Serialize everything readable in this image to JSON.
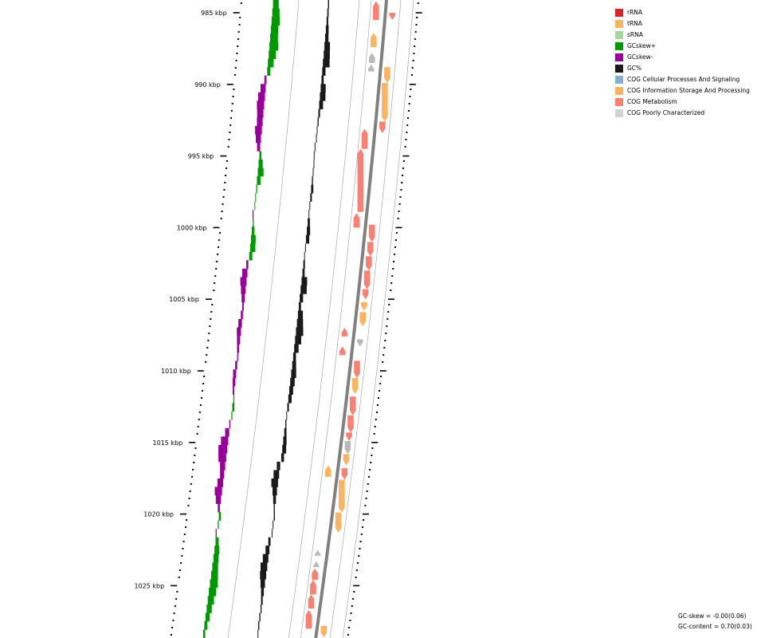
{
  "map": {
    "kbp_ticks": [
      {
        "label": "985 kbp",
        "kbp": 985
      },
      {
        "label": "990 kbp",
        "kbp": 990
      },
      {
        "label": "995 kbp",
        "kbp": 995
      },
      {
        "label": "1000 kbp",
        "kbp": 1000
      },
      {
        "label": "1005 kbp",
        "kbp": 1005
      },
      {
        "label": "1010 kbp",
        "kbp": 1010
      },
      {
        "label": "1015 kbp",
        "kbp": 1015
      },
      {
        "label": "1020 kbp",
        "kbp": 1020
      },
      {
        "label": "1025 kbp",
        "kbp": 1025
      }
    ],
    "kbp_range": [
      984.1,
      1028.6
    ],
    "features": [
      {
        "track": "inner",
        "strand": -1,
        "start": 984.2,
        "end": 985.5,
        "category": "COG Metabolism"
      },
      {
        "track": "inner",
        "strand": -1,
        "start": 986.4,
        "end": 987.4,
        "category": "COG Information Storage And Processing"
      },
      {
        "track": "inner",
        "strand": -1,
        "start": 987.8,
        "end": 988.5,
        "category": "COG Poorly Characterized"
      },
      {
        "track": "inner",
        "strand": -1,
        "start": 988.6,
        "end": 989.1,
        "category": "COG Poorly Characterized"
      },
      {
        "track": "inner",
        "strand": -1,
        "start": 993.1,
        "end": 994.5,
        "category": "COG Metabolism"
      },
      {
        "track": "inner",
        "strand": -1,
        "start": 994.5,
        "end": 998.9,
        "category": "COG Metabolism"
      },
      {
        "track": "inner",
        "strand": -1,
        "start": 999.0,
        "end": 1000.0,
        "category": "COG Metabolism"
      },
      {
        "track": "inner",
        "strand": -1,
        "start": 1007.0,
        "end": 1007.6,
        "category": "COG Metabolism"
      },
      {
        "track": "inner",
        "strand": -1,
        "start": 1008.3,
        "end": 1008.9,
        "category": "COG Metabolism"
      },
      {
        "track": "inner",
        "strand": -1,
        "start": 1016.6,
        "end": 1017.4,
        "category": "COG Information Storage And Processing"
      },
      {
        "track": "inner",
        "strand": -1,
        "start": 1022.5,
        "end": 1022.9,
        "category": "COG Poorly Characterized"
      },
      {
        "track": "inner",
        "strand": -1,
        "start": 1023.3,
        "end": 1023.7,
        "category": "COG Poorly Characterized"
      },
      {
        "track": "inner",
        "strand": -1,
        "start": 1023.8,
        "end": 1024.6,
        "category": "COG Metabolism"
      },
      {
        "track": "inner",
        "strand": -1,
        "start": 1024.6,
        "end": 1025.6,
        "category": "COG Metabolism"
      },
      {
        "track": "inner",
        "strand": -1,
        "start": 1025.6,
        "end": 1026.6,
        "category": "COG Metabolism"
      },
      {
        "track": "inner",
        "strand": -1,
        "start": 1026.7,
        "end": 1028.0,
        "category": "COG Metabolism"
      },
      {
        "track": "outer",
        "strand": 1,
        "start": 985.0,
        "end": 985.5,
        "category": "COG Metabolism"
      },
      {
        "track": "outer",
        "strand": 1,
        "start": 988.8,
        "end": 989.9,
        "category": "COG Information Storage And Processing"
      },
      {
        "track": "outer",
        "strand": 1,
        "start": 989.9,
        "end": 992.6,
        "category": "COG Information Storage And Processing"
      },
      {
        "track": "outer",
        "strand": 1,
        "start": 992.6,
        "end": 993.4,
        "category": "COG Metabolism"
      },
      {
        "track": "outer",
        "strand": 1,
        "start": 999.8,
        "end": 1001.0,
        "category": "COG Metabolism"
      },
      {
        "track": "outer",
        "strand": 1,
        "start": 1001.0,
        "end": 1002.0,
        "category": "COG Metabolism"
      },
      {
        "track": "outer",
        "strand": 1,
        "start": 1002.0,
        "end": 1003.0,
        "category": "COG Metabolism"
      },
      {
        "track": "outer",
        "strand": 1,
        "start": 1003.0,
        "end": 1004.3,
        "category": "COG Metabolism"
      },
      {
        "track": "outer",
        "strand": 1,
        "start": 1004.3,
        "end": 1005.0,
        "category": "COG Metabolism"
      },
      {
        "track": "outer",
        "strand": 1,
        "start": 1005.2,
        "end": 1005.8,
        "category": "COG Information Storage And Processing"
      },
      {
        "track": "outer",
        "strand": 1,
        "start": 1005.9,
        "end": 1006.9,
        "category": "COG Information Storage And Processing"
      },
      {
        "track": "outer",
        "strand": 1,
        "start": 1007.8,
        "end": 1008.3,
        "category": "COG Poorly Characterized"
      },
      {
        "track": "outer",
        "strand": 1,
        "start": 1009.3,
        "end": 1010.5,
        "category": "COG Metabolism"
      },
      {
        "track": "outer",
        "strand": 1,
        "start": 1010.5,
        "end": 1011.6,
        "category": "COG Information Storage And Processing"
      },
      {
        "track": "outer",
        "strand": 1,
        "start": 1011.8,
        "end": 1013.1,
        "category": "COG Metabolism"
      },
      {
        "track": "outer",
        "strand": 1,
        "start": 1013.1,
        "end": 1014.3,
        "category": "COG Metabolism"
      },
      {
        "track": "outer",
        "strand": 1,
        "start": 1014.3,
        "end": 1014.9,
        "category": "COG Metabolism"
      },
      {
        "track": "outer",
        "strand": 1,
        "start": 1014.9,
        "end": 1015.8,
        "category": "COG Poorly Characterized"
      },
      {
        "track": "outer",
        "strand": 1,
        "start": 1015.8,
        "end": 1016.6,
        "category": "COG Information Storage And Processing"
      },
      {
        "track": "outer",
        "strand": 1,
        "start": 1016.8,
        "end": 1017.6,
        "category": "COG Metabolism"
      },
      {
        "track": "outer",
        "strand": 1,
        "start": 1017.6,
        "end": 1019.9,
        "category": "COG Information Storage And Processing"
      },
      {
        "track": "outer",
        "strand": 1,
        "start": 1019.9,
        "end": 1021.3,
        "category": "COG Information Storage And Processing"
      },
      {
        "track": "outer",
        "strand": 1,
        "start": 1027.8,
        "end": 1028.6,
        "category": "COG Information Storage And Processing"
      }
    ],
    "gc_content_profile": [
      0.1,
      0.12,
      0.15,
      0.25,
      0.3,
      0.5,
      0.55,
      0.6,
      0.3,
      0.2,
      0.45,
      0.5,
      0.35,
      0.15,
      0.1,
      0.05,
      0.0,
      -0.05,
      -0.05,
      0.0,
      0.05,
      0.1,
      0.2,
      0.15,
      0.05,
      0.0,
      0.2,
      0.3,
      0.3,
      0.05,
      0.0,
      0.15,
      0.2,
      0.5,
      0.55,
      0.3,
      0.2,
      0.45,
      0.55,
      0.65,
      0.55,
      0.4,
      0.25,
      0.35,
      0.45,
      0.4,
      0.35,
      0.3,
      0.15,
      0.05,
      0.1,
      0.2,
      0.3,
      0.35,
      0.25,
      -0.3,
      -0.5,
      -0.6,
      -0.4,
      -0.25,
      -0.1,
      0.1,
      0.05,
      0.0,
      -0.2,
      -0.35,
      -0.5,
      -0.6,
      -0.55,
      -0.4,
      -0.25,
      -0.15,
      -0.1,
      -0.1,
      -0.1,
      -0.05
    ],
    "gc_skew_profile": [
      0.55,
      0.7,
      0.8,
      0.7,
      0.75,
      0.85,
      0.7,
      0.55,
      0.3,
      -0.2,
      -0.5,
      -0.65,
      -0.7,
      -0.6,
      -0.55,
      -0.65,
      -0.5,
      -0.3,
      0.2,
      0.4,
      0.55,
      0.35,
      0.1,
      0.05,
      0.0,
      -0.1,
      0.1,
      0.25,
      0.45,
      0.5,
      0.3,
      -0.2,
      -0.5,
      -0.6,
      -0.45,
      -0.3,
      -0.15,
      -0.2,
      -0.35,
      -0.4,
      -0.3,
      -0.2,
      -0.1,
      -0.2,
      -0.3,
      -0.25,
      -0.15,
      0.1,
      0.2,
      0.1,
      -0.1,
      -0.4,
      -0.7,
      -0.85,
      -0.75,
      -0.5,
      -0.4,
      -0.55,
      -0.7,
      -0.5,
      -0.2,
      0.2,
      0.1,
      -0.1,
      0.3,
      0.45,
      0.5,
      0.55,
      0.65,
      0.75,
      0.7,
      0.6,
      0.5,
      0.4,
      0.3,
      0.2
    ]
  },
  "legend": [
    {
      "label": "rRNA",
      "color": "#d62728"
    },
    {
      "label": "tRNA",
      "color": "#fdb462"
    },
    {
      "label": "sRNA",
      "color": "#a6d79a"
    },
    {
      "label": "GCskew+",
      "color": "#009900"
    },
    {
      "label": "GCskew-",
      "color": "#990099"
    },
    {
      "label": "GC%",
      "color": "#1a1a1a"
    },
    {
      "label": "COG Cellular Processes And Signaling",
      "color": "#80b1d3"
    },
    {
      "label": "COG Information Storage And Processing",
      "color": "#fdb462"
    },
    {
      "label": "COG Metabolism",
      "color": "#fa8072"
    },
    {
      "label": "COG Poorly Characterized",
      "color": "#d3d3d3"
    }
  ],
  "stats": {
    "gc_skew": "GC-skew = -0.00(0.06)",
    "gc_content": "GC-content = 0.70(0.03)"
  },
  "colors": {
    "backbone": "#808080",
    "guide": "#9a9a9a",
    "arrow_gray": "#b9b9b9"
  }
}
